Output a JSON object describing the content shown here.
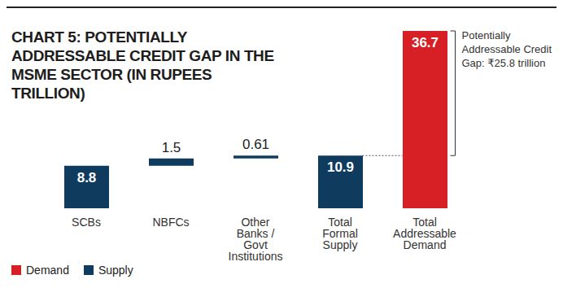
{
  "chart_data": {
    "type": "waterfall",
    "title": "CHART 5: POTENTIALLY ADDRESSABLE CREDIT GAP IN THE MSME SECTOR (IN RUPEES TRILLION)",
    "categories": [
      "SCBs",
      "NBFCs",
      "Other Banks / Govt Institutions",
      "Total Formal Supply",
      "Total Addressable Demand"
    ],
    "series": [
      {
        "name": "Demand",
        "color": "#d71f26",
        "values": [
          null,
          null,
          null,
          null,
          36.7
        ]
      },
      {
        "name": "Supply",
        "color": "#0f3b5f",
        "values": [
          8.8,
          1.5,
          0.61,
          10.9,
          null
        ]
      }
    ],
    "ylim": [
      0,
      36.7
    ],
    "tick_labels": "x",
    "data_labels": true,
    "legend": "bottom left",
    "annotations": [
      {
        "text": "Potentially Addressable Credit Gap: ₹25.8 trillion",
        "value": 25.8
      }
    ]
  }
}
